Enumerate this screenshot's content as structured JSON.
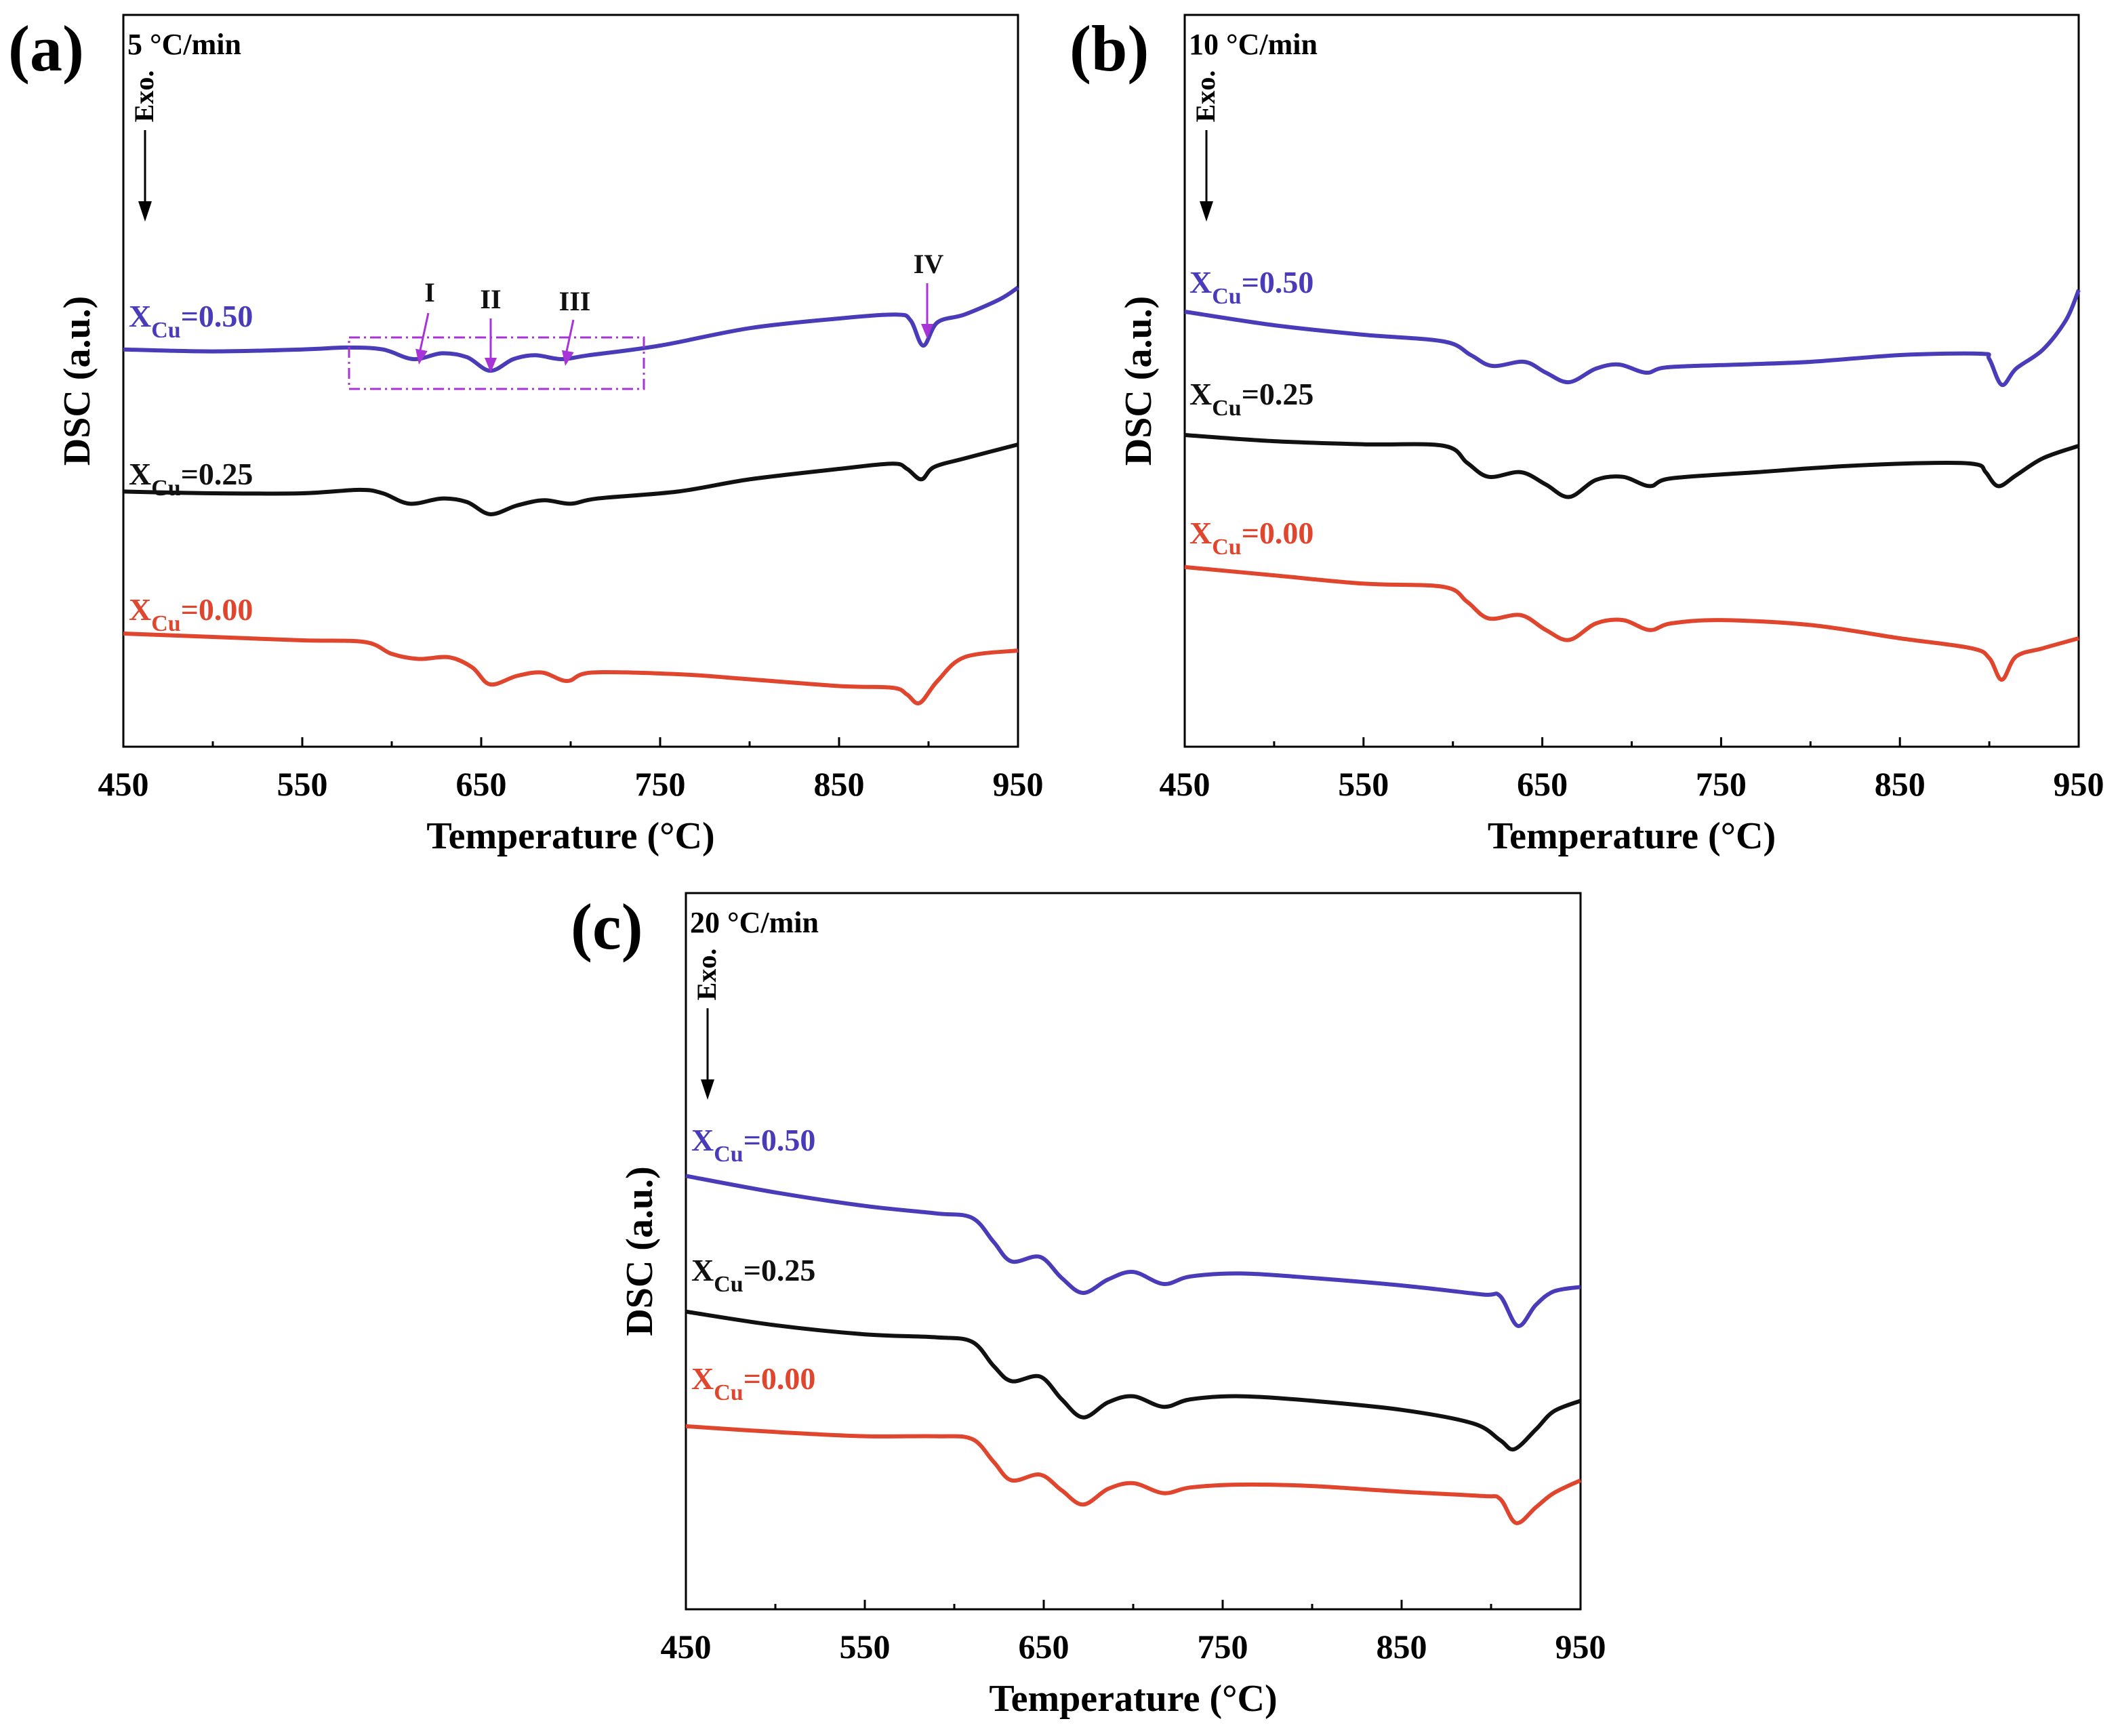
{
  "colors": {
    "blue": "#4a3cb8",
    "black": "#111111",
    "red": "#e0452e",
    "magenta": "#a833d6"
  },
  "chart_data": [
    {
      "type": "line",
      "panel_label": "(a)",
      "rate_label": "5 °C/min",
      "exo_label": "Exo.",
      "xlabel": "Temperature (°C)",
      "ylabel": "DSC (a.u.)",
      "xlim": [
        450,
        950
      ],
      "xticks": [
        450,
        550,
        650,
        750,
        850,
        950
      ],
      "y_units": "arbitrary (offset traces)",
      "series": [
        {
          "name_main": "X",
          "name_sub": "Cu",
          "name_suffix": "=0.50",
          "color": "#4a3cb8",
          "points": [
            [
              450,
              0.88
            ],
            [
              500,
              0.875
            ],
            [
              550,
              0.88
            ],
            [
              575,
              0.885
            ],
            [
              595,
              0.88
            ],
            [
              612,
              0.855
            ],
            [
              628,
              0.87
            ],
            [
              642,
              0.86
            ],
            [
              655,
              0.825
            ],
            [
              668,
              0.855
            ],
            [
              680,
              0.865
            ],
            [
              695,
              0.855
            ],
            [
              710,
              0.865
            ],
            [
              750,
              0.89
            ],
            [
              800,
              0.935
            ],
            [
              850,
              0.96
            ],
            [
              882,
              0.97
            ],
            [
              890,
              0.955
            ],
            [
              897,
              0.89
            ],
            [
              905,
              0.95
            ],
            [
              920,
              0.97
            ],
            [
              940,
              1.01
            ],
            [
              950,
              1.04
            ]
          ]
        },
        {
          "name_main": "X",
          "name_sub": "Cu",
          "name_suffix": "=0.25",
          "color": "#111111",
          "points": [
            [
              450,
              0.445
            ],
            [
              500,
              0.44
            ],
            [
              550,
              0.44
            ],
            [
              582,
              0.45
            ],
            [
              595,
              0.44
            ],
            [
              610,
              0.41
            ],
            [
              628,
              0.425
            ],
            [
              642,
              0.415
            ],
            [
              655,
              0.38
            ],
            [
              670,
              0.405
            ],
            [
              685,
              0.42
            ],
            [
              700,
              0.41
            ],
            [
              715,
              0.425
            ],
            [
              760,
              0.445
            ],
            [
              800,
              0.48
            ],
            [
              850,
              0.51
            ],
            [
              880,
              0.525
            ],
            [
              888,
              0.51
            ],
            [
              896,
              0.48
            ],
            [
              903,
              0.515
            ],
            [
              920,
              0.54
            ],
            [
              950,
              0.58
            ]
          ]
        },
        {
          "name_main": "X",
          "name_sub": "Cu",
          "name_suffix": "=0.00",
          "color": "#e0452e",
          "points": [
            [
              450,
              0.04
            ],
            [
              500,
              0.03
            ],
            [
              550,
              0.02
            ],
            [
              585,
              0.015
            ],
            [
              600,
              -0.02
            ],
            [
              615,
              -0.035
            ],
            [
              632,
              -0.03
            ],
            [
              645,
              -0.06
            ],
            [
              655,
              -0.11
            ],
            [
              670,
              -0.085
            ],
            [
              684,
              -0.075
            ],
            [
              698,
              -0.1
            ],
            [
              712,
              -0.075
            ],
            [
              760,
              -0.08
            ],
            [
              800,
              -0.095
            ],
            [
              850,
              -0.115
            ],
            [
              880,
              -0.12
            ],
            [
              888,
              -0.14
            ],
            [
              895,
              -0.165
            ],
            [
              905,
              -0.1
            ],
            [
              920,
              -0.03
            ],
            [
              950,
              -0.01
            ]
          ]
        }
      ],
      "annotations": [
        "I",
        "II",
        "III",
        "IV"
      ]
    },
    {
      "type": "line",
      "panel_label": "(b)",
      "rate_label": "10 °C/min",
      "exo_label": "Exo.",
      "xlabel": "Temperature (°C)",
      "ylabel": "DSC (a.u.)",
      "xlim": [
        450,
        950
      ],
      "xticks": [
        450,
        550,
        650,
        750,
        850,
        950
      ],
      "y_units": "arbitrary (offset traces)",
      "series": [
        {
          "name_main": "X",
          "name_sub": "Cu",
          "name_suffix": "=0.50",
          "color": "#4a3cb8",
          "points": [
            [
              450,
              1.05
            ],
            [
              500,
              1.0
            ],
            [
              550,
              0.965
            ],
            [
              595,
              0.94
            ],
            [
              610,
              0.89
            ],
            [
              622,
              0.85
            ],
            [
              640,
              0.865
            ],
            [
              652,
              0.825
            ],
            [
              665,
              0.79
            ],
            [
              680,
              0.84
            ],
            [
              693,
              0.855
            ],
            [
              708,
              0.825
            ],
            [
              720,
              0.845
            ],
            [
              760,
              0.855
            ],
            [
              800,
              0.865
            ],
            [
              850,
              0.89
            ],
            [
              895,
              0.895
            ],
            [
              900,
              0.875
            ],
            [
              907,
              0.78
            ],
            [
              915,
              0.84
            ],
            [
              930,
              0.91
            ],
            [
              943,
              1.02
            ],
            [
              950,
              1.13
            ]
          ]
        },
        {
          "name_main": "X",
          "name_sub": "Cu",
          "name_suffix": "=0.25",
          "color": "#111111",
          "points": [
            [
              450,
              0.73
            ],
            [
              500,
              0.71
            ],
            [
              550,
              0.7
            ],
            [
              595,
              0.695
            ],
            [
              608,
              0.64
            ],
            [
              620,
              0.595
            ],
            [
              638,
              0.61
            ],
            [
              652,
              0.57
            ],
            [
              665,
              0.53
            ],
            [
              680,
              0.585
            ],
            [
              695,
              0.595
            ],
            [
              710,
              0.565
            ],
            [
              722,
              0.59
            ],
            [
              770,
              0.61
            ],
            [
              820,
              0.63
            ],
            [
              870,
              0.64
            ],
            [
              893,
              0.635
            ],
            [
              898,
              0.61
            ],
            [
              905,
              0.565
            ],
            [
              915,
              0.6
            ],
            [
              930,
              0.655
            ],
            [
              950,
              0.695
            ]
          ]
        },
        {
          "name_main": "X",
          "name_sub": "Cu",
          "name_suffix": "=0.00",
          "color": "#e0452e",
          "points": [
            [
              450,
              0.345
            ],
            [
              500,
              0.32
            ],
            [
              550,
              0.295
            ],
            [
              595,
              0.285
            ],
            [
              608,
              0.24
            ],
            [
              620,
              0.19
            ],
            [
              638,
              0.2
            ],
            [
              652,
              0.155
            ],
            [
              665,
              0.125
            ],
            [
              680,
              0.175
            ],
            [
              695,
              0.185
            ],
            [
              710,
              0.155
            ],
            [
              722,
              0.175
            ],
            [
              750,
              0.185
            ],
            [
              800,
              0.17
            ],
            [
              850,
              0.13
            ],
            [
              890,
              0.1
            ],
            [
              900,
              0.07
            ],
            [
              907,
              0.005
            ],
            [
              915,
              0.075
            ],
            [
              930,
              0.1
            ],
            [
              950,
              0.13
            ]
          ]
        }
      ]
    },
    {
      "type": "line",
      "panel_label": "(c)",
      "rate_label": "20 °C/min",
      "exo_label": "Exo.",
      "xlabel": "Temperature (°C)",
      "ylabel": "DSC (a.u.)",
      "xlim": [
        450,
        950
      ],
      "xticks": [
        450,
        550,
        650,
        750,
        850,
        950
      ],
      "y_units": "arbitrary (offset traces)",
      "series": [
        {
          "name_main": "X",
          "name_sub": "Cu",
          "name_suffix": "=0.50",
          "color": "#4a3cb8",
          "points": [
            [
              450,
              1.22
            ],
            [
              500,
              1.165
            ],
            [
              550,
              1.12
            ],
            [
              590,
              1.095
            ],
            [
              610,
              1.08
            ],
            [
              622,
              1.0
            ],
            [
              632,
              0.935
            ],
            [
              648,
              0.95
            ],
            [
              660,
              0.88
            ],
            [
              672,
              0.83
            ],
            [
              686,
              0.875
            ],
            [
              700,
              0.9
            ],
            [
              717,
              0.86
            ],
            [
              732,
              0.885
            ],
            [
              760,
              0.895
            ],
            [
              800,
              0.88
            ],
            [
              850,
              0.855
            ],
            [
              895,
              0.825
            ],
            [
              905,
              0.82
            ],
            [
              915,
              0.72
            ],
            [
              925,
              0.79
            ],
            [
              935,
              0.835
            ],
            [
              950,
              0.85
            ]
          ]
        },
        {
          "name_main": "X",
          "name_sub": "Cu",
          "name_suffix": "=0.25",
          "color": "#111111",
          "points": [
            [
              450,
              0.77
            ],
            [
              500,
              0.725
            ],
            [
              550,
              0.695
            ],
            [
              590,
              0.685
            ],
            [
              610,
              0.67
            ],
            [
              622,
              0.59
            ],
            [
              632,
              0.54
            ],
            [
              648,
              0.555
            ],
            [
              660,
              0.48
            ],
            [
              672,
              0.42
            ],
            [
              686,
              0.47
            ],
            [
              700,
              0.49
            ],
            [
              717,
              0.455
            ],
            [
              732,
              0.48
            ],
            [
              760,
              0.49
            ],
            [
              800,
              0.475
            ],
            [
              850,
              0.445
            ],
            [
              890,
              0.4
            ],
            [
              905,
              0.345
            ],
            [
              913,
              0.315
            ],
            [
              925,
              0.38
            ],
            [
              935,
              0.44
            ],
            [
              950,
              0.475
            ]
          ]
        },
        {
          "name_main": "X",
          "name_sub": "Cu",
          "name_suffix": "=0.00",
          "color": "#e0452e",
          "points": [
            [
              450,
              0.405
            ],
            [
              500,
              0.385
            ],
            [
              550,
              0.37
            ],
            [
              590,
              0.37
            ],
            [
              610,
              0.36
            ],
            [
              622,
              0.28
            ],
            [
              632,
              0.215
            ],
            [
              648,
              0.235
            ],
            [
              660,
              0.18
            ],
            [
              672,
              0.13
            ],
            [
              686,
              0.185
            ],
            [
              700,
              0.205
            ],
            [
              717,
              0.17
            ],
            [
              732,
              0.19
            ],
            [
              760,
              0.2
            ],
            [
              800,
              0.195
            ],
            [
              850,
              0.175
            ],
            [
              895,
              0.16
            ],
            [
              905,
              0.15
            ],
            [
              914,
              0.065
            ],
            [
              925,
              0.12
            ],
            [
              935,
              0.17
            ],
            [
              950,
              0.215
            ]
          ]
        }
      ]
    }
  ]
}
